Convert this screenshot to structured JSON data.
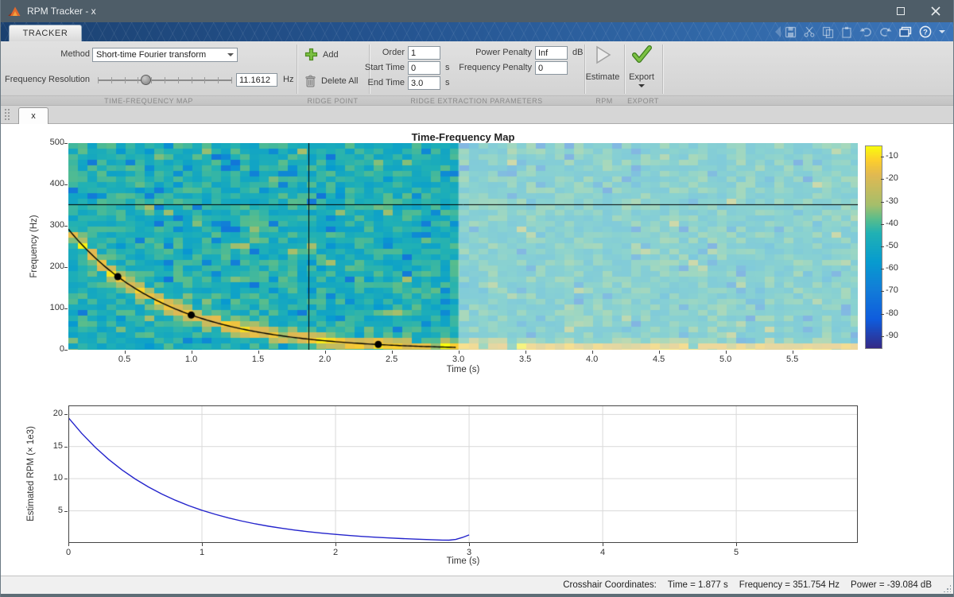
{
  "window": {
    "title": "RPM Tracker - x"
  },
  "ribbon": {
    "tab_label": "TRACKER",
    "tfmap": {
      "method_label": "Method",
      "method_value": "Short-time Fourier transform",
      "freq_res_label": "Frequency Resolution",
      "freq_res_value": "11.1612",
      "freq_res_unit": "Hz",
      "section_label": "TIME-FREQUENCY MAP"
    },
    "ridge_point": {
      "add_label": "Add",
      "delete_all_label": "Delete All",
      "section_label": "RIDGE POINT"
    },
    "ridge_params": {
      "order_label": "Order",
      "order_value": "1",
      "start_time_label": "Start Time",
      "start_time_value": "0",
      "start_time_unit": "s",
      "end_time_label": "End Time",
      "end_time_value": "3.0",
      "end_time_unit": "s",
      "power_penalty_label": "Power Penalty",
      "power_penalty_value": "Inf",
      "power_penalty_unit": "dB",
      "freq_penalty_label": "Frequency Penalty",
      "freq_penalty_value": "0",
      "section_label": "RIDGE EXTRACTION PARAMETERS"
    },
    "rpm": {
      "estimate_label": "Estimate",
      "section_label": "RPM"
    },
    "export": {
      "export_label": "Export",
      "section_label": "EXPORT"
    }
  },
  "doc_tab_label": "x",
  "statusbar": {
    "prefix": "Crosshair Coordinates:",
    "time": "Time = 1.877 s",
    "frequency": "Frequency = 351.754 Hz",
    "power": "Power = -39.084 dB"
  },
  "chart_data": [
    {
      "type": "heatmap",
      "name": "time-frequency-map",
      "title": "Time-Frequency Map",
      "xlabel": "Time (s)",
      "ylabel": "Frequency (Hz)",
      "xlim": [
        0.08,
        5.99
      ],
      "ylim": [
        0,
        500
      ],
      "xticks": [
        0.5,
        1.0,
        1.5,
        2.0,
        2.5,
        3.0,
        3.5,
        4.0,
        4.5,
        5.0,
        5.5
      ],
      "yticks": [
        0,
        100,
        200,
        300,
        400,
        500
      ],
      "colorbar": {
        "colormap": "parula",
        "range_db": [
          -5,
          -95
        ],
        "ticks_db": [
          -10,
          -20,
          -30,
          -40,
          -50,
          -60,
          -70,
          -80,
          -90
        ]
      },
      "noise": {
        "mean_db": -45,
        "spread_db": 16
      },
      "ridge": {
        "f0_hz": 325,
        "decay_tau_s": 0.74,
        "extracted_until_s": 3.0,
        "boost_db": 33,
        "bandwidth_hz": 16,
        "points": [
          [
            0.45,
            177
          ],
          [
            1.0,
            84
          ],
          [
            2.4,
            13
          ]
        ]
      },
      "crosshair": {
        "time_s": 1.877,
        "frequency_hz": 351.754,
        "power_db": -39.084
      },
      "faded_region_start_s": 3.0
    },
    {
      "type": "line",
      "name": "estimated-rpm",
      "xlabel": "Time (s)",
      "ylabel": "Estimated RPM (× 1e3)",
      "xlim": [
        0,
        5.91
      ],
      "ylim": [
        0,
        21.4
      ],
      "xticks": [
        0,
        1,
        2,
        3,
        4,
        5
      ],
      "yticks": [
        5,
        10,
        15,
        20
      ],
      "grid": true,
      "line_color": "#2424cc",
      "points": [
        [
          0,
          19.5
        ],
        [
          0.1,
          17.05
        ],
        [
          0.2,
          14.9
        ],
        [
          0.3,
          13.03
        ],
        [
          0.4,
          11.39
        ],
        [
          0.5,
          9.96
        ],
        [
          0.6,
          8.71
        ],
        [
          0.7,
          7.61
        ],
        [
          0.8,
          6.66
        ],
        [
          0.9,
          5.82
        ],
        [
          1.0,
          5.09
        ],
        [
          1.1,
          4.45
        ],
        [
          1.2,
          3.89
        ],
        [
          1.3,
          3.4
        ],
        [
          1.4,
          2.97
        ],
        [
          1.5,
          2.6
        ],
        [
          1.6,
          2.27
        ],
        [
          1.7,
          1.99
        ],
        [
          1.8,
          1.74
        ],
        [
          1.9,
          1.52
        ],
        [
          2.0,
          1.33
        ],
        [
          2.1,
          1.16
        ],
        [
          2.2,
          1.01
        ],
        [
          2.3,
          0.89
        ],
        [
          2.4,
          0.78
        ],
        [
          2.5,
          0.68
        ],
        [
          2.6,
          0.59
        ],
        [
          2.7,
          0.52
        ],
        [
          2.8,
          0.45
        ],
        [
          2.85,
          0.43
        ],
        [
          2.9,
          0.55
        ],
        [
          2.95,
          0.85
        ],
        [
          3.0,
          1.25
        ]
      ]
    }
  ]
}
